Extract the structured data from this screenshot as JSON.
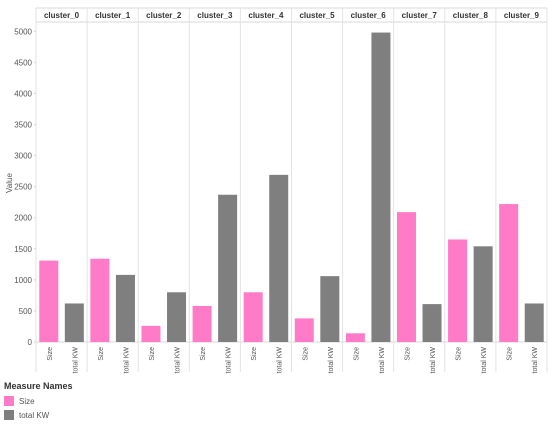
{
  "chart_data": {
    "type": "bar",
    "ylabel": "Value",
    "ylim": [
      0,
      5150
    ],
    "yticks": [
      0,
      500,
      1000,
      1500,
      2000,
      2500,
      3000,
      3500,
      4000,
      4500,
      5000
    ],
    "categories": [
      "cluster_0",
      "cluster_1",
      "cluster_2",
      "cluster_3",
      "cluster_4",
      "cluster_5",
      "cluster_6",
      "cluster_7",
      "cluster_8",
      "cluster_9"
    ],
    "measures": [
      "Size",
      "total KW"
    ],
    "series": [
      {
        "name": "Size",
        "color": "#ff7bc7",
        "values": [
          1310,
          1340,
          260,
          580,
          800,
          380,
          140,
          2090,
          1650,
          2220
        ]
      },
      {
        "name": "total KW",
        "color": "#7f7f7f",
        "values": [
          620,
          1080,
          800,
          2370,
          2690,
          1060,
          4980,
          610,
          1540,
          620
        ]
      }
    ],
    "grid": false
  },
  "legend": {
    "title": "Measure Names",
    "items": [
      {
        "label": "Size",
        "color": "#ff7bc7"
      },
      {
        "label": "total KW",
        "color": "#7f7f7f"
      }
    ]
  }
}
